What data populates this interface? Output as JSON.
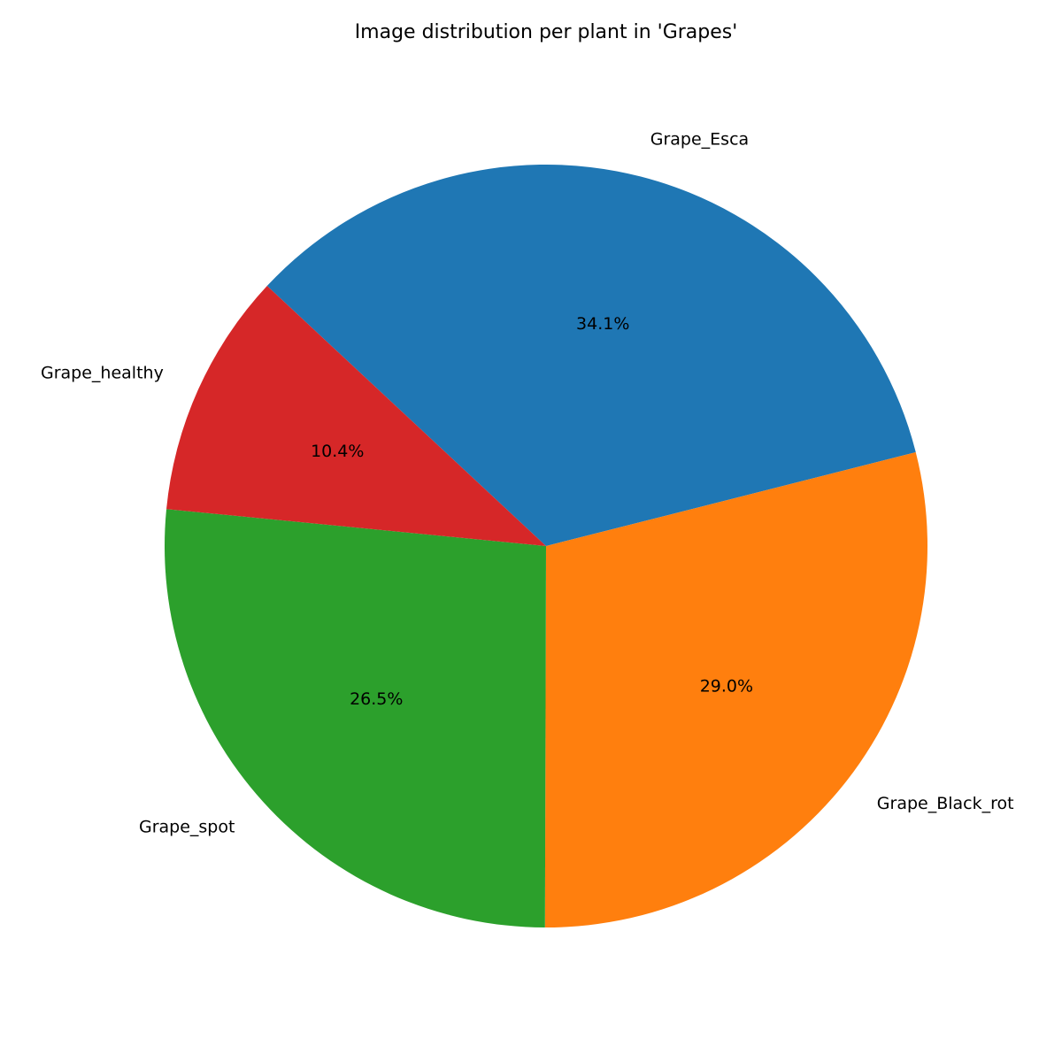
{
  "chart_data": {
    "type": "pie",
    "title": "Image distribution per plant in 'Grapes'",
    "start_angle_deg": 137,
    "direction": "clockwise",
    "slices": [
      {
        "label": "Grape_Esca",
        "value": 34.1,
        "pct_text": "34.1%",
        "color": "#1f77b4"
      },
      {
        "label": "Grape_Black_rot",
        "value": 29.0,
        "pct_text": "29.0%",
        "color": "#ff7f0e"
      },
      {
        "label": "Grape_spot",
        "value": 26.5,
        "pct_text": "26.5%",
        "color": "#2ca02c"
      },
      {
        "label": "Grape_healthy",
        "value": 10.4,
        "pct_text": "10.4%",
        "color": "#d62728"
      }
    ]
  }
}
